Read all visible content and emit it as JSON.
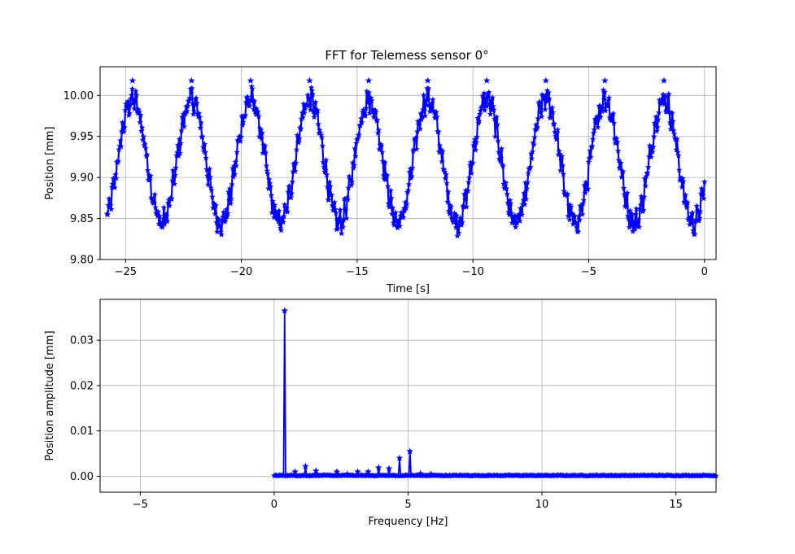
{
  "figure": {
    "title": "FFT for Telemess sensor 0°"
  },
  "chart_data": [
    {
      "type": "line",
      "name": "time-domain",
      "title": "FFT for Telemess sensor 0°",
      "xlabel": "Time [s]",
      "ylabel": "Position [mm]",
      "xlim": [
        -26.1,
        0.5
      ],
      "ylim": [
        9.8,
        10.035
      ],
      "xticks": [
        -25,
        -20,
        -15,
        -10,
        -5,
        0
      ],
      "xtick_labels": [
        "−25",
        "−20",
        "−15",
        "−10",
        "−5",
        "0"
      ],
      "yticks": [
        9.8,
        9.85,
        9.9,
        9.95,
        10.0
      ],
      "ytick_labels": [
        "9.80",
        "9.85",
        "9.90",
        "9.95",
        "10.00"
      ],
      "grid": true,
      "color": "#0000ff",
      "marker": "star",
      "signal": {
        "x_start": -25.8,
        "x_end": 0.0,
        "sample_rate_hz": 33,
        "mean": 9.92,
        "amplitude": 0.075,
        "period_s": 2.55,
        "peak_time_s": -24.7,
        "noise_amplitude": 0.012,
        "ripple_frequency_hz": 5.0,
        "ripple_amplitude": 0.006
      },
      "peaks_time_s": [
        -24.7,
        -22.15,
        -19.6,
        -17.05,
        -14.5,
        -11.95,
        -9.4,
        -6.85,
        -4.3,
        -1.75
      ]
    },
    {
      "type": "line",
      "name": "frequency-domain",
      "title": "",
      "xlabel": "Frequency [Hz]",
      "ylabel": "Position amplitude [mm]",
      "xlim": [
        -6.5,
        16.5
      ],
      "ylim": [
        -0.0035,
        0.039
      ],
      "xticks": [
        -5,
        0,
        5,
        10,
        15
      ],
      "xtick_labels": [
        "−5",
        "0",
        "5",
        "10",
        "15"
      ],
      "yticks": [
        0.0,
        0.01,
        0.02,
        0.03
      ],
      "ytick_labels": [
        "0.00",
        "0.01",
        "0.02",
        "0.03"
      ],
      "grid": true,
      "color": "#0000ff",
      "marker": "star",
      "frequency_range_hz": [
        0.0,
        16.5
      ],
      "frequency_step_hz": 0.039,
      "baseline_amplitude": 0.0002,
      "peaks": [
        {
          "f": 0.39,
          "a": 0.0365
        },
        {
          "f": 0.78,
          "a": 0.001
        },
        {
          "f": 1.17,
          "a": 0.0022
        },
        {
          "f": 1.56,
          "a": 0.0012
        },
        {
          "f": 2.34,
          "a": 0.001
        },
        {
          "f": 2.73,
          "a": 0.0005
        },
        {
          "f": 3.12,
          "a": 0.001
        },
        {
          "f": 3.51,
          "a": 0.001
        },
        {
          "f": 3.9,
          "a": 0.0019
        },
        {
          "f": 4.29,
          "a": 0.0017
        },
        {
          "f": 4.68,
          "a": 0.004
        },
        {
          "f": 5.07,
          "a": 0.0055
        },
        {
          "f": 5.46,
          "a": 0.0006
        },
        {
          "f": 5.85,
          "a": 0.0005
        }
      ]
    }
  ]
}
